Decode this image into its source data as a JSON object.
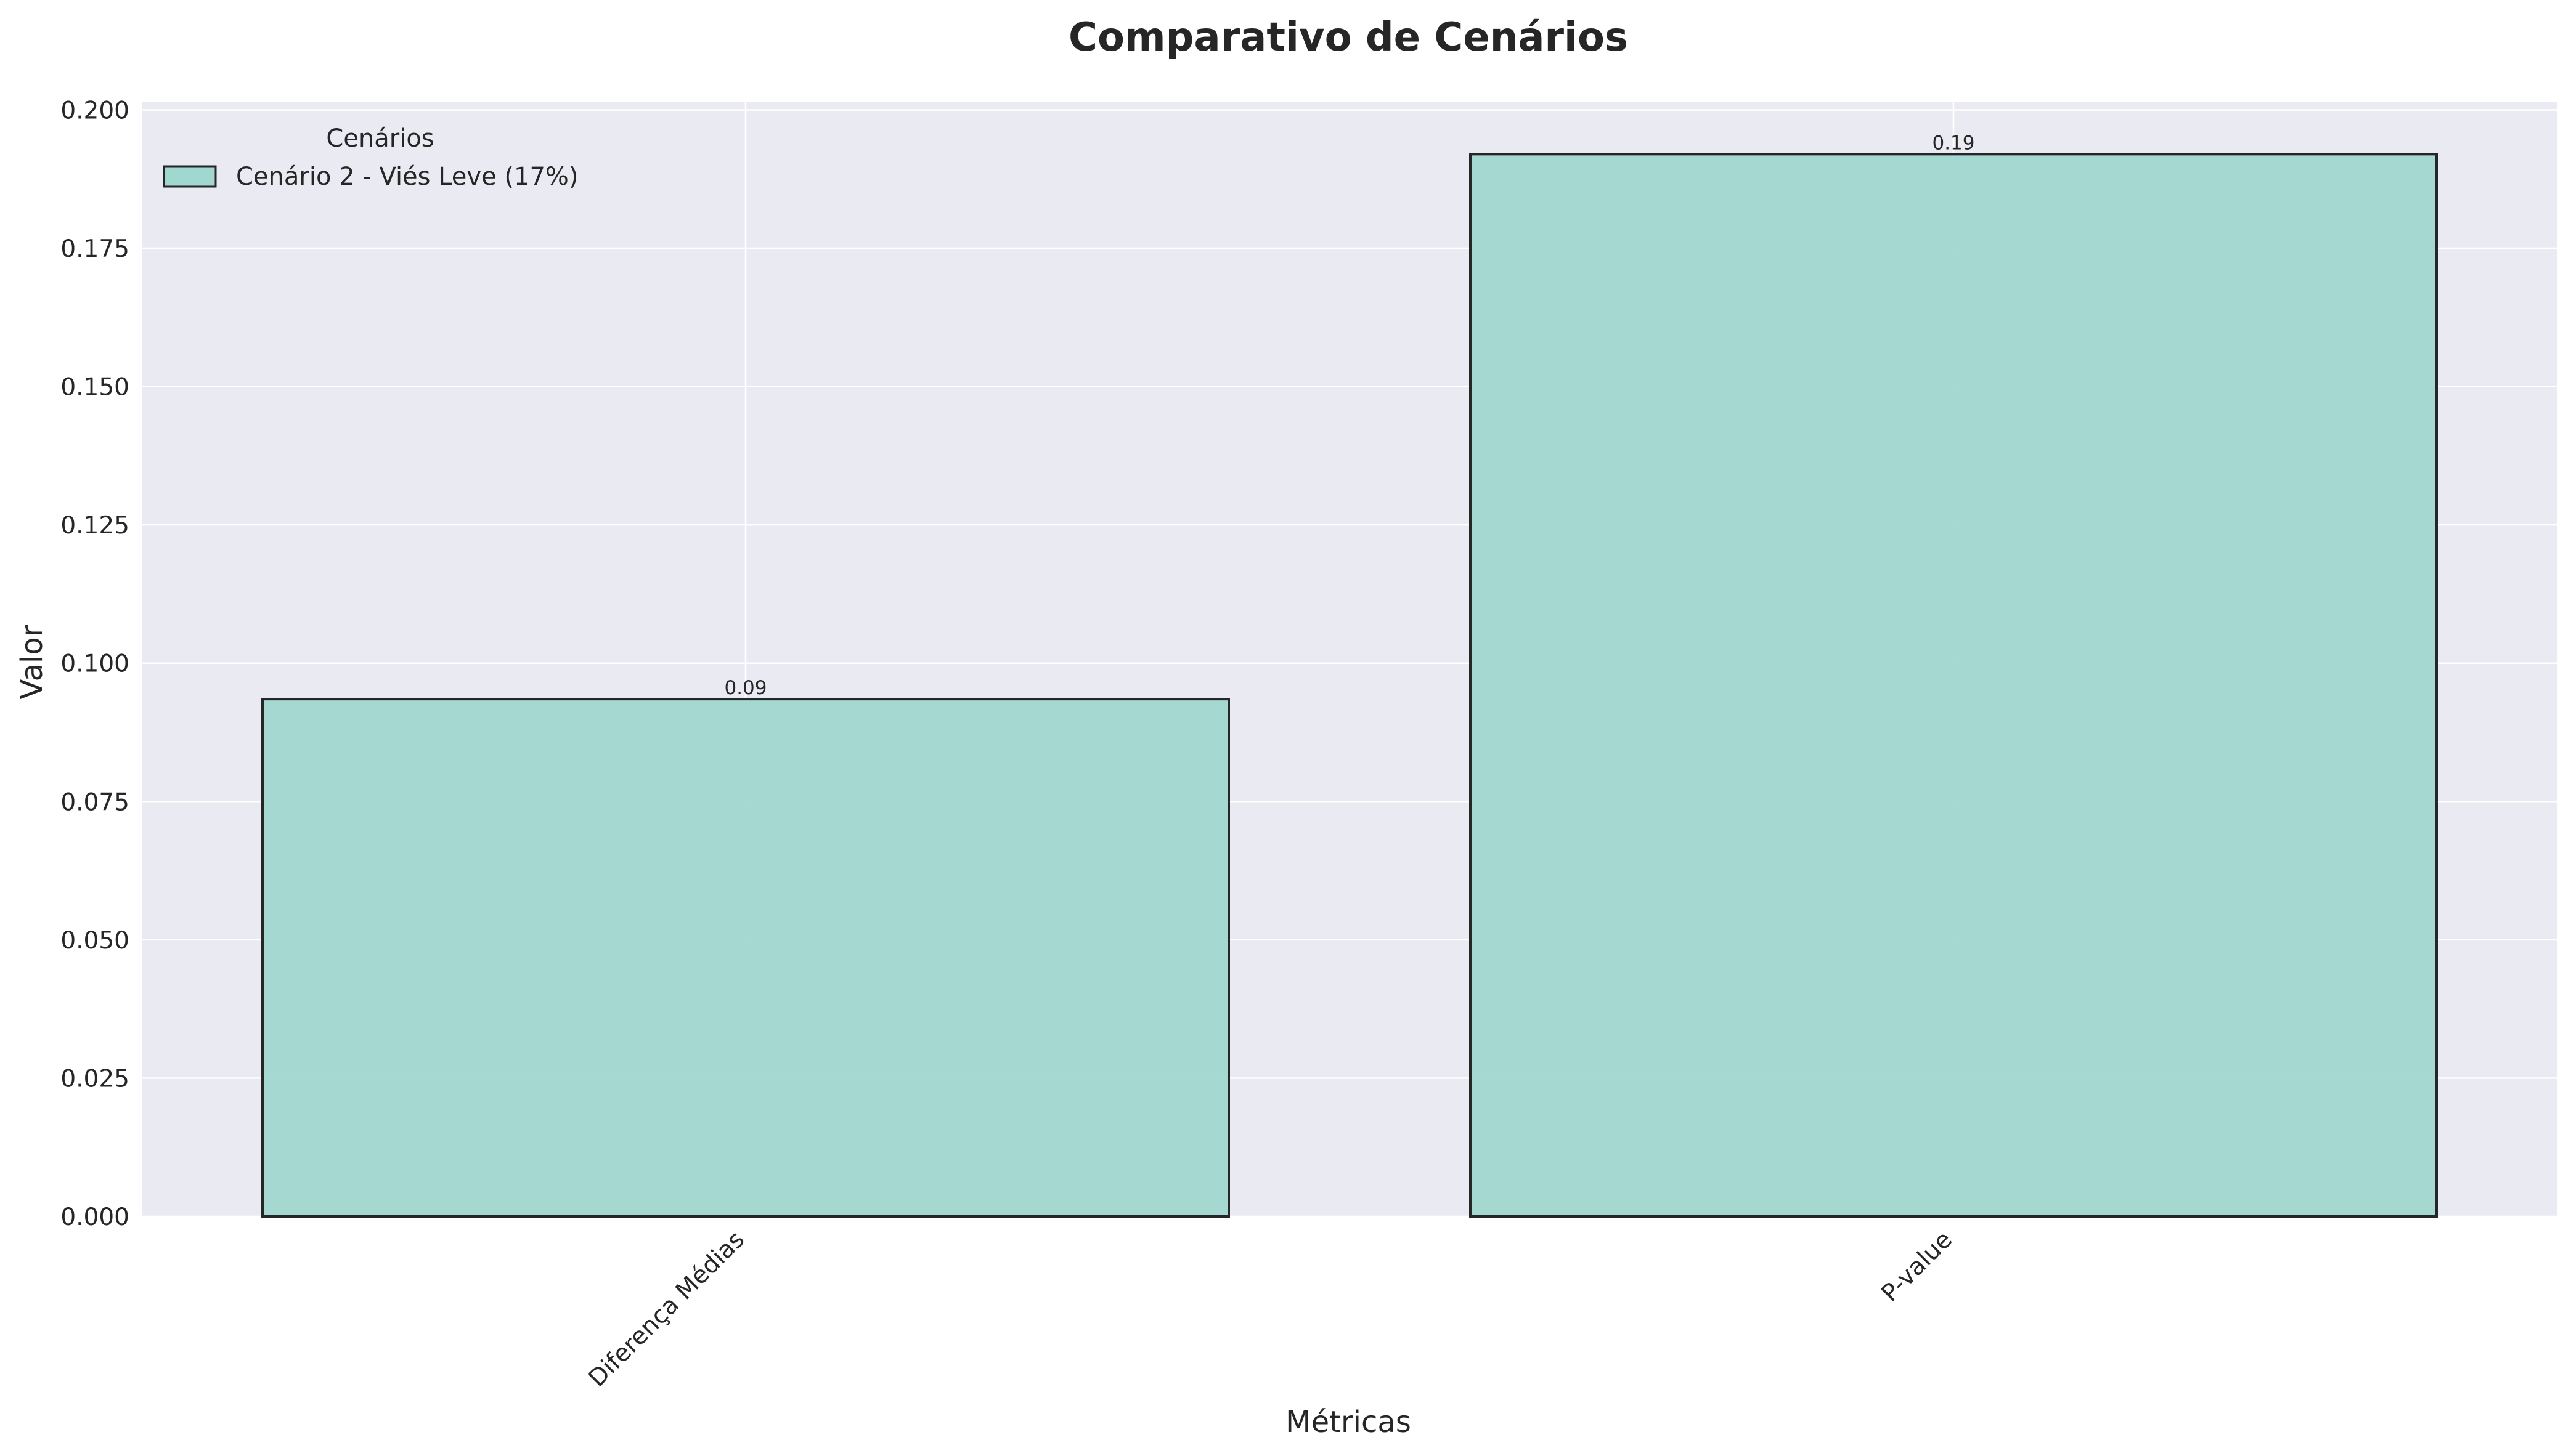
{
  "chart_data": {
    "type": "bar",
    "title": "Comparativo de Cenários",
    "xlabel": "Métricas",
    "ylabel": "Valor",
    "categories": [
      "Diferença Médias",
      "P-value"
    ],
    "series": [
      {
        "name": "Cenário 2 - Viés Leve (17%)",
        "values": [
          0.0935,
          0.192
        ],
        "labels": [
          "0.09",
          "0.19"
        ],
        "color": "#a0d7cf"
      }
    ],
    "ylim": [
      0,
      0.2015
    ],
    "yticks": [
      "0.000",
      "0.025",
      "0.050",
      "0.075",
      "0.100",
      "0.125",
      "0.150",
      "0.175",
      "0.200"
    ],
    "ytick_values": [
      0,
      0.025,
      0.05,
      0.075,
      0.1,
      0.125,
      0.15,
      0.175,
      0.2
    ],
    "grid": true,
    "legend": {
      "title": "Cenários",
      "placement": "top-left"
    },
    "colors": {
      "plot_background": "#eaeaf2",
      "grid": "#ffffff",
      "bar_edge": "#262626",
      "text": "#262626"
    }
  }
}
